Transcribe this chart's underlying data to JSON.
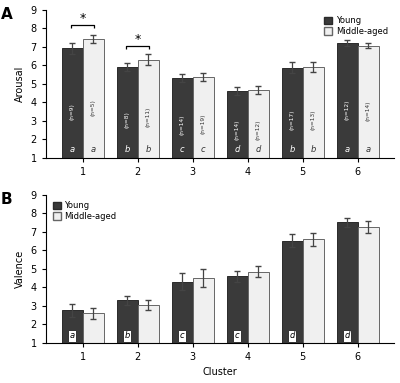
{
  "clusters": [
    1,
    2,
    3,
    4,
    5,
    6
  ],
  "panel_A": {
    "ylabel": "Arousal",
    "young_means": [
      6.9,
      5.9,
      5.3,
      4.6,
      5.85,
      7.2
    ],
    "young_errors": [
      0.3,
      0.2,
      0.2,
      0.2,
      0.3,
      0.15
    ],
    "young_n": [
      "n=9",
      "n=8",
      "n=14",
      "n=14",
      "n=17",
      "n=12"
    ],
    "middle_means": [
      7.4,
      6.3,
      5.35,
      4.65,
      5.9,
      7.05
    ],
    "middle_errors": [
      0.22,
      0.28,
      0.22,
      0.2,
      0.25,
      0.15
    ],
    "middle_n": [
      "n=5",
      "n=11",
      "n=19",
      "n=12",
      "n=13",
      "n=14"
    ],
    "young_letters": [
      "a",
      "b",
      "c",
      "d",
      "b",
      "a"
    ],
    "middle_letters": [
      "a",
      "b",
      "c",
      "d",
      "b",
      "a"
    ],
    "ylim": [
      1,
      9
    ],
    "yticks": [
      1,
      2,
      3,
      4,
      5,
      6,
      7,
      8,
      9
    ]
  },
  "panel_B": {
    "ylabel": "Valence",
    "young_means": [
      2.75,
      3.3,
      4.3,
      4.6,
      6.5,
      7.5
    ],
    "young_errors": [
      0.35,
      0.25,
      0.45,
      0.3,
      0.35,
      0.25
    ],
    "middle_means": [
      2.6,
      3.05,
      4.5,
      4.85,
      6.6,
      7.25
    ],
    "middle_errors": [
      0.3,
      0.25,
      0.5,
      0.3,
      0.35,
      0.32
    ],
    "young_letters": [
      "a",
      "b",
      "c",
      "c",
      "d",
      "d"
    ],
    "ylim": [
      1,
      9
    ],
    "yticks": [
      1,
      2,
      3,
      4,
      5,
      6,
      7,
      8,
      9
    ]
  },
  "bar_width": 0.38,
  "young_color": "#3a3a3a",
  "middle_color": "#f0f0f0",
  "young_edge": "#2a2a2a",
  "middle_edge": "#666666",
  "xlabel": "Cluster",
  "label_A": "A",
  "label_B": "B"
}
